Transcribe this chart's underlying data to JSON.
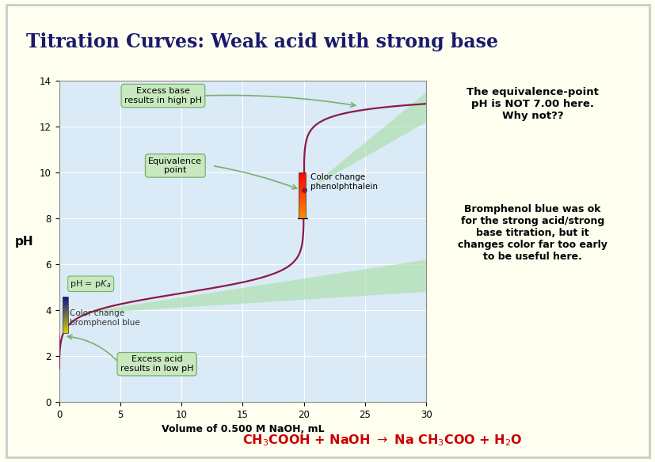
{
  "title": "Titration Curves: Weak acid with strong base",
  "title_fontsize": 17,
  "title_fontweight": "bold",
  "bg_color": "#fffff0",
  "plot_bg_color": "#daeaf6",
  "header_bar_color1": "#3a5a78",
  "header_bar_color2": "#5b8db8",
  "curve_color": "#8b1a4a",
  "xlabel": "Volume of 0.500 M NaOH, mL",
  "ylabel": "pH",
  "xlim": [
    0.0,
    30.0
  ],
  "ylim": [
    0.0,
    14.0
  ],
  "xticks": [
    0.0,
    5.0,
    10.0,
    15.0,
    20.0,
    25.0,
    30.0
  ],
  "yticks": [
    0.0,
    2.0,
    4.0,
    6.0,
    8.0,
    10.0,
    12.0,
    14.0
  ],
  "annotation_box_color": "#c8e8c0",
  "annotation_edge_color": "#7aaf72",
  "wedge_color": "#b0e0b0",
  "wedge_alpha": 0.7,
  "equation_color": "#cc0000",
  "pKa": 4.74,
  "equivalence_x": 20.0,
  "equivalence_y": 9.25,
  "outer_border_color": "#aaaaaa"
}
